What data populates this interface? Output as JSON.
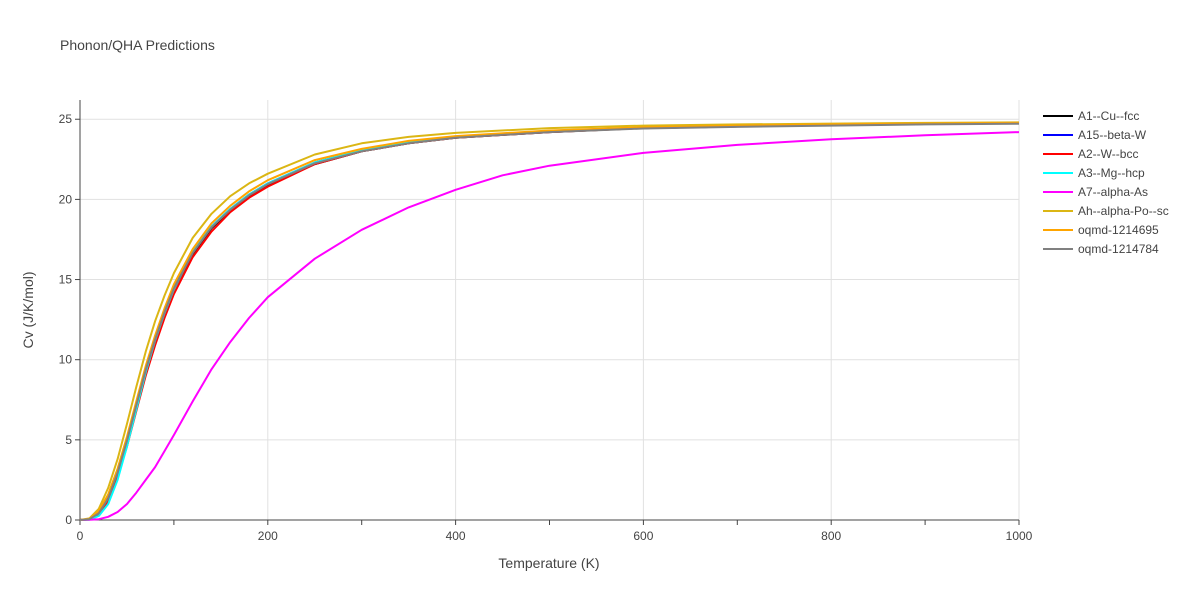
{
  "chart_data": {
    "type": "line",
    "title": "Phonon/QHA Predictions",
    "xlabel": "Temperature (K)",
    "ylabel": "Cv (J/K/mol)",
    "xlim": [
      0,
      1000
    ],
    "ylim": [
      0,
      26.2
    ],
    "x_ticks": [
      0,
      200,
      400,
      600,
      800,
      1000
    ],
    "y_ticks": [
      0,
      5,
      10,
      15,
      20,
      25
    ],
    "grid": true,
    "legend_position": "right",
    "series": [
      {
        "name": "A1--Cu--fcc",
        "color": "#000000",
        "x": [
          0,
          10,
          20,
          30,
          40,
          50,
          60,
          70,
          80,
          90,
          100,
          120,
          140,
          160,
          180,
          200,
          250,
          300,
          350,
          400,
          500,
          600,
          700,
          800,
          900,
          1000
        ],
        "y": [
          0,
          0.05,
          0.4,
          1.3,
          2.9,
          4.9,
          7.1,
          9.3,
          11.2,
          12.9,
          14.4,
          16.6,
          18.2,
          19.3,
          20.2,
          20.9,
          22.2,
          23.0,
          23.5,
          23.85,
          24.2,
          24.45,
          24.55,
          24.65,
          24.7,
          24.75
        ]
      },
      {
        "name": "A15--beta-W",
        "color": "#0000ff",
        "x": [
          0,
          10,
          20,
          30,
          40,
          50,
          60,
          70,
          80,
          90,
          100,
          120,
          140,
          160,
          180,
          200,
          250,
          300,
          350,
          400,
          500,
          600,
          700,
          800,
          900,
          1000
        ],
        "y": [
          0,
          0.05,
          0.45,
          1.4,
          3.0,
          5.0,
          7.2,
          9.4,
          11.3,
          13.0,
          14.5,
          16.7,
          18.3,
          19.4,
          20.3,
          21.0,
          22.3,
          23.05,
          23.55,
          23.9,
          24.25,
          24.45,
          24.55,
          24.65,
          24.7,
          24.75
        ]
      },
      {
        "name": "A2--W--bcc",
        "color": "#ff0000",
        "x": [
          0,
          10,
          20,
          30,
          40,
          50,
          60,
          70,
          80,
          90,
          100,
          120,
          140,
          160,
          180,
          200,
          250,
          300,
          350,
          400,
          500,
          600,
          700,
          800,
          900,
          1000
        ],
        "y": [
          0,
          0.04,
          0.35,
          1.2,
          2.7,
          4.6,
          6.8,
          9.0,
          10.9,
          12.6,
          14.1,
          16.4,
          18.0,
          19.2,
          20.1,
          20.8,
          22.2,
          23.0,
          23.5,
          23.85,
          24.2,
          24.45,
          24.55,
          24.65,
          24.7,
          24.75
        ]
      },
      {
        "name": "A3--Mg--hcp",
        "color": "#00ffff",
        "x": [
          0,
          10,
          20,
          30,
          40,
          50,
          60,
          70,
          80,
          90,
          100,
          120,
          140,
          160,
          180,
          200,
          250,
          300,
          350,
          400,
          500,
          600,
          700,
          800,
          900,
          1000
        ],
        "y": [
          0,
          0.02,
          0.25,
          1.0,
          2.5,
          4.6,
          6.9,
          9.2,
          11.2,
          12.9,
          14.4,
          16.7,
          18.3,
          19.4,
          20.3,
          21.0,
          22.3,
          23.05,
          23.55,
          23.9,
          24.25,
          24.45,
          24.55,
          24.65,
          24.7,
          24.75
        ]
      },
      {
        "name": "A7--alpha-As",
        "color": "#ff00ff",
        "x": [
          0,
          10,
          20,
          30,
          40,
          50,
          60,
          70,
          80,
          90,
          100,
          120,
          140,
          160,
          180,
          200,
          250,
          300,
          350,
          400,
          450,
          500,
          600,
          700,
          800,
          900,
          1000
        ],
        "y": [
          0,
          0.01,
          0.05,
          0.2,
          0.5,
          1.0,
          1.7,
          2.5,
          3.3,
          4.3,
          5.3,
          7.4,
          9.4,
          11.1,
          12.6,
          13.9,
          16.3,
          18.1,
          19.5,
          20.6,
          21.5,
          22.1,
          22.9,
          23.4,
          23.75,
          24.0,
          24.2
        ]
      },
      {
        "name": "Ah--alpha-Po--sc",
        "color": "#dbb614",
        "x": [
          0,
          10,
          20,
          30,
          40,
          50,
          60,
          70,
          80,
          90,
          100,
          120,
          140,
          160,
          180,
          200,
          250,
          300,
          350,
          400,
          500,
          600,
          700,
          800,
          900,
          1000
        ],
        "y": [
          0,
          0.1,
          0.7,
          2.0,
          3.8,
          6.0,
          8.3,
          10.5,
          12.4,
          14.0,
          15.4,
          17.6,
          19.1,
          20.2,
          21.0,
          21.6,
          22.8,
          23.5,
          23.9,
          24.15,
          24.45,
          24.6,
          24.68,
          24.73,
          24.77,
          24.8
        ]
      },
      {
        "name": "oqmd-1214695",
        "color": "#ffa500",
        "x": [
          0,
          10,
          20,
          30,
          40,
          50,
          60,
          70,
          80,
          90,
          100,
          120,
          140,
          160,
          180,
          200,
          250,
          300,
          350,
          400,
          500,
          600,
          700,
          800,
          900,
          1000
        ],
        "y": [
          0,
          0.07,
          0.55,
          1.6,
          3.2,
          5.2,
          7.4,
          9.6,
          11.5,
          13.2,
          14.7,
          16.9,
          18.5,
          19.6,
          20.5,
          21.2,
          22.45,
          23.15,
          23.65,
          23.95,
          24.3,
          24.5,
          24.6,
          24.68,
          24.73,
          24.77
        ]
      },
      {
        "name": "oqmd-1214784",
        "color": "#808080",
        "x": [
          0,
          10,
          20,
          30,
          40,
          50,
          60,
          70,
          80,
          90,
          100,
          120,
          140,
          160,
          180,
          200,
          250,
          300,
          350,
          400,
          500,
          600,
          700,
          800,
          900,
          1000
        ],
        "y": [
          0,
          0.05,
          0.42,
          1.35,
          2.95,
          4.95,
          7.15,
          9.35,
          11.25,
          12.95,
          14.45,
          16.65,
          18.25,
          19.35,
          20.25,
          20.95,
          22.25,
          23.0,
          23.5,
          23.85,
          24.2,
          24.42,
          24.52,
          24.6,
          24.68,
          24.72
        ]
      }
    ]
  }
}
